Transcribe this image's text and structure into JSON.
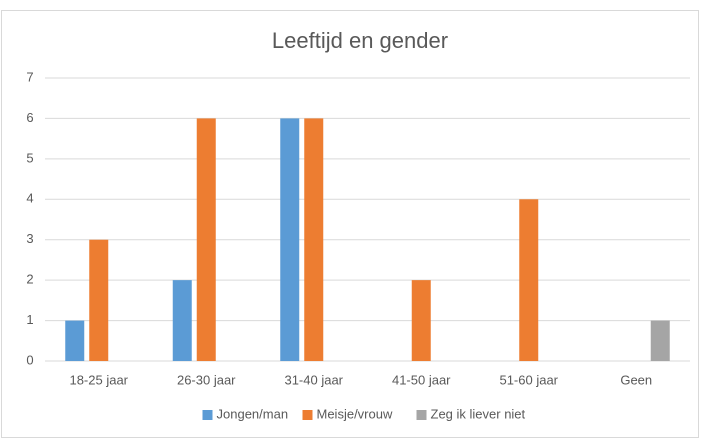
{
  "chart_data": {
    "type": "bar",
    "title": "Leeftijd en gender",
    "categories": [
      "18-25 jaar",
      "26-30 jaar",
      "31-40 jaar",
      "41-50 jaar",
      "51-60 jaar",
      "Geen"
    ],
    "series": [
      {
        "name": "Jongen/man",
        "color": "#5b9bd5",
        "values": [
          1,
          2,
          6,
          0,
          0,
          0
        ]
      },
      {
        "name": "Meisje/vrouw",
        "color": "#ed7d31",
        "values": [
          3,
          6,
          6,
          2,
          4,
          0
        ]
      },
      {
        "name": "Zeg ik liever niet",
        "color": "#a5a5a5",
        "values": [
          0,
          0,
          0,
          0,
          0,
          1
        ]
      }
    ],
    "ylim": [
      0,
      7
    ],
    "yticks": [
      0,
      1,
      2,
      3,
      4,
      5,
      6,
      7
    ],
    "grid": true,
    "legend": "bottom"
  }
}
